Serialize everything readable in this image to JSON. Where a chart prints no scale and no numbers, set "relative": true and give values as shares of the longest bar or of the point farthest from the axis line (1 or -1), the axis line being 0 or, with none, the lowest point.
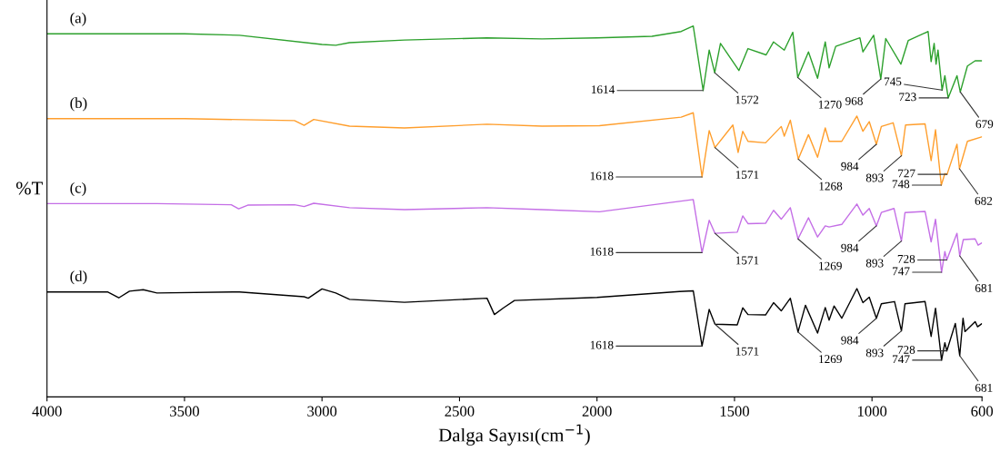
{
  "chart_data": {
    "type": "line",
    "relative": true,
    "xlabel": "Dalga Sayısı(cm$^{−1}$)",
    "ylabel": "%T",
    "xlim": [
      4000,
      600
    ],
    "xticks": [
      4000,
      3500,
      3000,
      2500,
      2000,
      1500,
      1000,
      600
    ],
    "grid": false,
    "legend": false,
    "marker": "none",
    "line_style": "solid",
    "tick_labels": "x",
    "series": [
      {
        "name": "(a)",
        "color": "#2ca02c",
        "x": [
          4000,
          3500,
          3300,
          3000,
          2950,
          2900,
          2700,
          2400,
          2200,
          2000,
          1800,
          1694,
          1650,
          1614,
          1592,
          1572,
          1551,
          1484,
          1451,
          1385,
          1358,
          1319,
          1288,
          1270,
          1231,
          1198,
          1170,
          1156,
          1132,
          1044,
          1033,
          994,
          968,
          950,
          895,
          868,
          796,
          785,
          774,
          767,
          760,
          745,
          735,
          723,
          691,
          679,
          653,
          625,
          601
        ],
        "values": [
          0.979,
          0.979,
          0.975,
          0.95,
          0.948,
          0.955,
          0.962,
          0.968,
          0.965,
          0.968,
          0.972,
          0.985,
          1.0,
          0.826,
          0.935,
          0.874,
          0.953,
          0.88,
          0.939,
          0.922,
          0.957,
          0.935,
          0.983,
          0.861,
          0.93,
          0.859,
          0.957,
          0.887,
          0.945,
          0.968,
          0.93,
          0.975,
          0.857,
          0.966,
          0.897,
          0.961,
          0.985,
          0.904,
          0.953,
          0.897,
          0.935,
          0.827,
          0.866,
          0.806,
          0.866,
          0.822,
          0.892,
          0.906,
          0.906
        ]
      },
      {
        "name": "(b)",
        "color": "#ff9e2c",
        "x": [
          4000,
          3500,
          3100,
          3065,
          3030,
          2900,
          2700,
          2400,
          2200,
          1991,
          1694,
          1650,
          1618,
          1592,
          1571,
          1506,
          1487,
          1470,
          1451,
          1387,
          1330,
          1319,
          1297,
          1268,
          1231,
          1198,
          1170,
          1156,
          1110,
          1055,
          1033,
          1010,
          984,
          966,
          923,
          893,
          878,
          807,
          785,
          769,
          748,
          735,
          727,
          691,
          682,
          653,
          601
        ],
        "values": [
          0.75,
          0.75,
          0.745,
          0.732,
          0.748,
          0.73,
          0.725,
          0.735,
          0.73,
          0.731,
          0.754,
          0.766,
          0.593,
          0.718,
          0.672,
          0.733,
          0.659,
          0.716,
          0.689,
          0.685,
          0.729,
          0.703,
          0.746,
          0.641,
          0.707,
          0.646,
          0.725,
          0.689,
          0.689,
          0.757,
          0.716,
          0.742,
          0.681,
          0.729,
          0.739,
          0.65,
          0.733,
          0.736,
          0.637,
          0.72,
          0.571,
          0.602,
          0.6,
          0.681,
          0.615,
          0.689,
          0.701
        ]
      },
      {
        "name": "(c)",
        "color": "#c46ee6",
        "x": [
          4000,
          3600,
          3330,
          3303,
          3270,
          3100,
          3065,
          3030,
          2900,
          2700,
          2400,
          2200,
          1991,
          1650,
          1618,
          1592,
          1571,
          1490,
          1470,
          1451,
          1387,
          1358,
          1330,
          1297,
          1269,
          1231,
          1198,
          1170,
          1156,
          1110,
          1055,
          1033,
          1010,
          984,
          966,
          920,
          893,
          880,
          807,
          785,
          769,
          747,
          735,
          728,
          691,
          681,
          668,
          625,
          614,
          601
        ],
        "values": [
          0.521,
          0.521,
          0.518,
          0.507,
          0.517,
          0.518,
          0.513,
          0.522,
          0.51,
          0.505,
          0.51,
          0.505,
          0.499,
          0.532,
          0.389,
          0.476,
          0.441,
          0.444,
          0.488,
          0.467,
          0.468,
          0.503,
          0.479,
          0.51,
          0.426,
          0.483,
          0.431,
          0.461,
          0.458,
          0.465,
          0.52,
          0.49,
          0.508,
          0.461,
          0.497,
          0.508,
          0.42,
          0.497,
          0.5,
          0.418,
          0.479,
          0.336,
          0.392,
          0.369,
          0.441,
          0.38,
          0.424,
          0.426,
          0.409,
          0.415
        ]
      },
      {
        "name": "(d)",
        "color": "#000000",
        "x": [
          4000,
          3780,
          3739,
          3700,
          3650,
          3600,
          3300,
          3065,
          3050,
          3000,
          2950,
          2900,
          2700,
          2400,
          2373,
          2340,
          2300,
          2000,
          1700,
          1650,
          1618,
          1592,
          1571,
          1490,
          1470,
          1451,
          1387,
          1358,
          1330,
          1297,
          1269,
          1242,
          1198,
          1170,
          1156,
          1138,
          1110,
          1055,
          1033,
          1010,
          984,
          966,
          918,
          893,
          880,
          807,
          785,
          769,
          747,
          735,
          728,
          697,
          681,
          669,
          662,
          625,
          616,
          601
        ],
        "values": [
          0.283,
          0.283,
          0.267,
          0.285,
          0.289,
          0.28,
          0.283,
          0.27,
          0.266,
          0.291,
          0.28,
          0.263,
          0.255,
          0.266,
          0.222,
          0.24,
          0.26,
          0.268,
          0.284,
          0.286,
          0.137,
          0.236,
          0.196,
          0.194,
          0.24,
          0.222,
          0.221,
          0.254,
          0.232,
          0.266,
          0.175,
          0.247,
          0.172,
          0.241,
          0.207,
          0.245,
          0.212,
          0.292,
          0.254,
          0.269,
          0.212,
          0.251,
          0.257,
          0.178,
          0.251,
          0.257,
          0.163,
          0.239,
          0.099,
          0.146,
          0.124,
          0.198,
          0.111,
          0.212,
          0.176,
          0.203,
          0.189,
          0.197
        ]
      }
    ],
    "annotations": [
      {
        "text": "1614",
        "x": 1614,
        "y": 0.826
      },
      {
        "text": "1572",
        "x": 1572,
        "y": 0.874
      },
      {
        "text": "1270",
        "x": 1270,
        "y": 0.861
      },
      {
        "text": "968",
        "x": 968,
        "y": 0.857
      },
      {
        "text": "745",
        "x": 745,
        "y": 0.827
      },
      {
        "text": "723",
        "x": 723,
        "y": 0.806
      },
      {
        "text": "679",
        "x": 679,
        "y": 0.822
      },
      {
        "text": "1618",
        "x": 1618,
        "y": 0.593
      },
      {
        "text": "1571",
        "x": 1571,
        "y": 0.672
      },
      {
        "text": "1268",
        "x": 1268,
        "y": 0.641
      },
      {
        "text": "984",
        "x": 984,
        "y": 0.681
      },
      {
        "text": "893",
        "x": 893,
        "y": 0.65
      },
      {
        "text": "748",
        "x": 748,
        "y": 0.571
      },
      {
        "text": "727",
        "x": 727,
        "y": 0.6
      },
      {
        "text": "682",
        "x": 682,
        "y": 0.615
      },
      {
        "text": "1618",
        "x": 1618,
        "y": 0.389
      },
      {
        "text": "1571",
        "x": 1571,
        "y": 0.441
      },
      {
        "text": "1269",
        "x": 1269,
        "y": 0.426
      },
      {
        "text": "984",
        "x": 984,
        "y": 0.461
      },
      {
        "text": "893",
        "x": 893,
        "y": 0.42
      },
      {
        "text": "747",
        "x": 747,
        "y": 0.336
      },
      {
        "text": "728",
        "x": 728,
        "y": 0.369
      },
      {
        "text": "681",
        "x": 681,
        "y": 0.38
      },
      {
        "text": "1618",
        "x": 1618,
        "y": 0.137
      },
      {
        "text": "1571",
        "x": 1571,
        "y": 0.196
      },
      {
        "text": "1269",
        "x": 1269,
        "y": 0.175
      },
      {
        "text": "984",
        "x": 984,
        "y": 0.212
      },
      {
        "text": "893",
        "x": 893,
        "y": 0.178
      },
      {
        "text": "747",
        "x": 747,
        "y": 0.099
      },
      {
        "text": "728",
        "x": 728,
        "y": 0.124
      },
      {
        "text": "681",
        "x": 681,
        "y": 0.111
      }
    ]
  }
}
